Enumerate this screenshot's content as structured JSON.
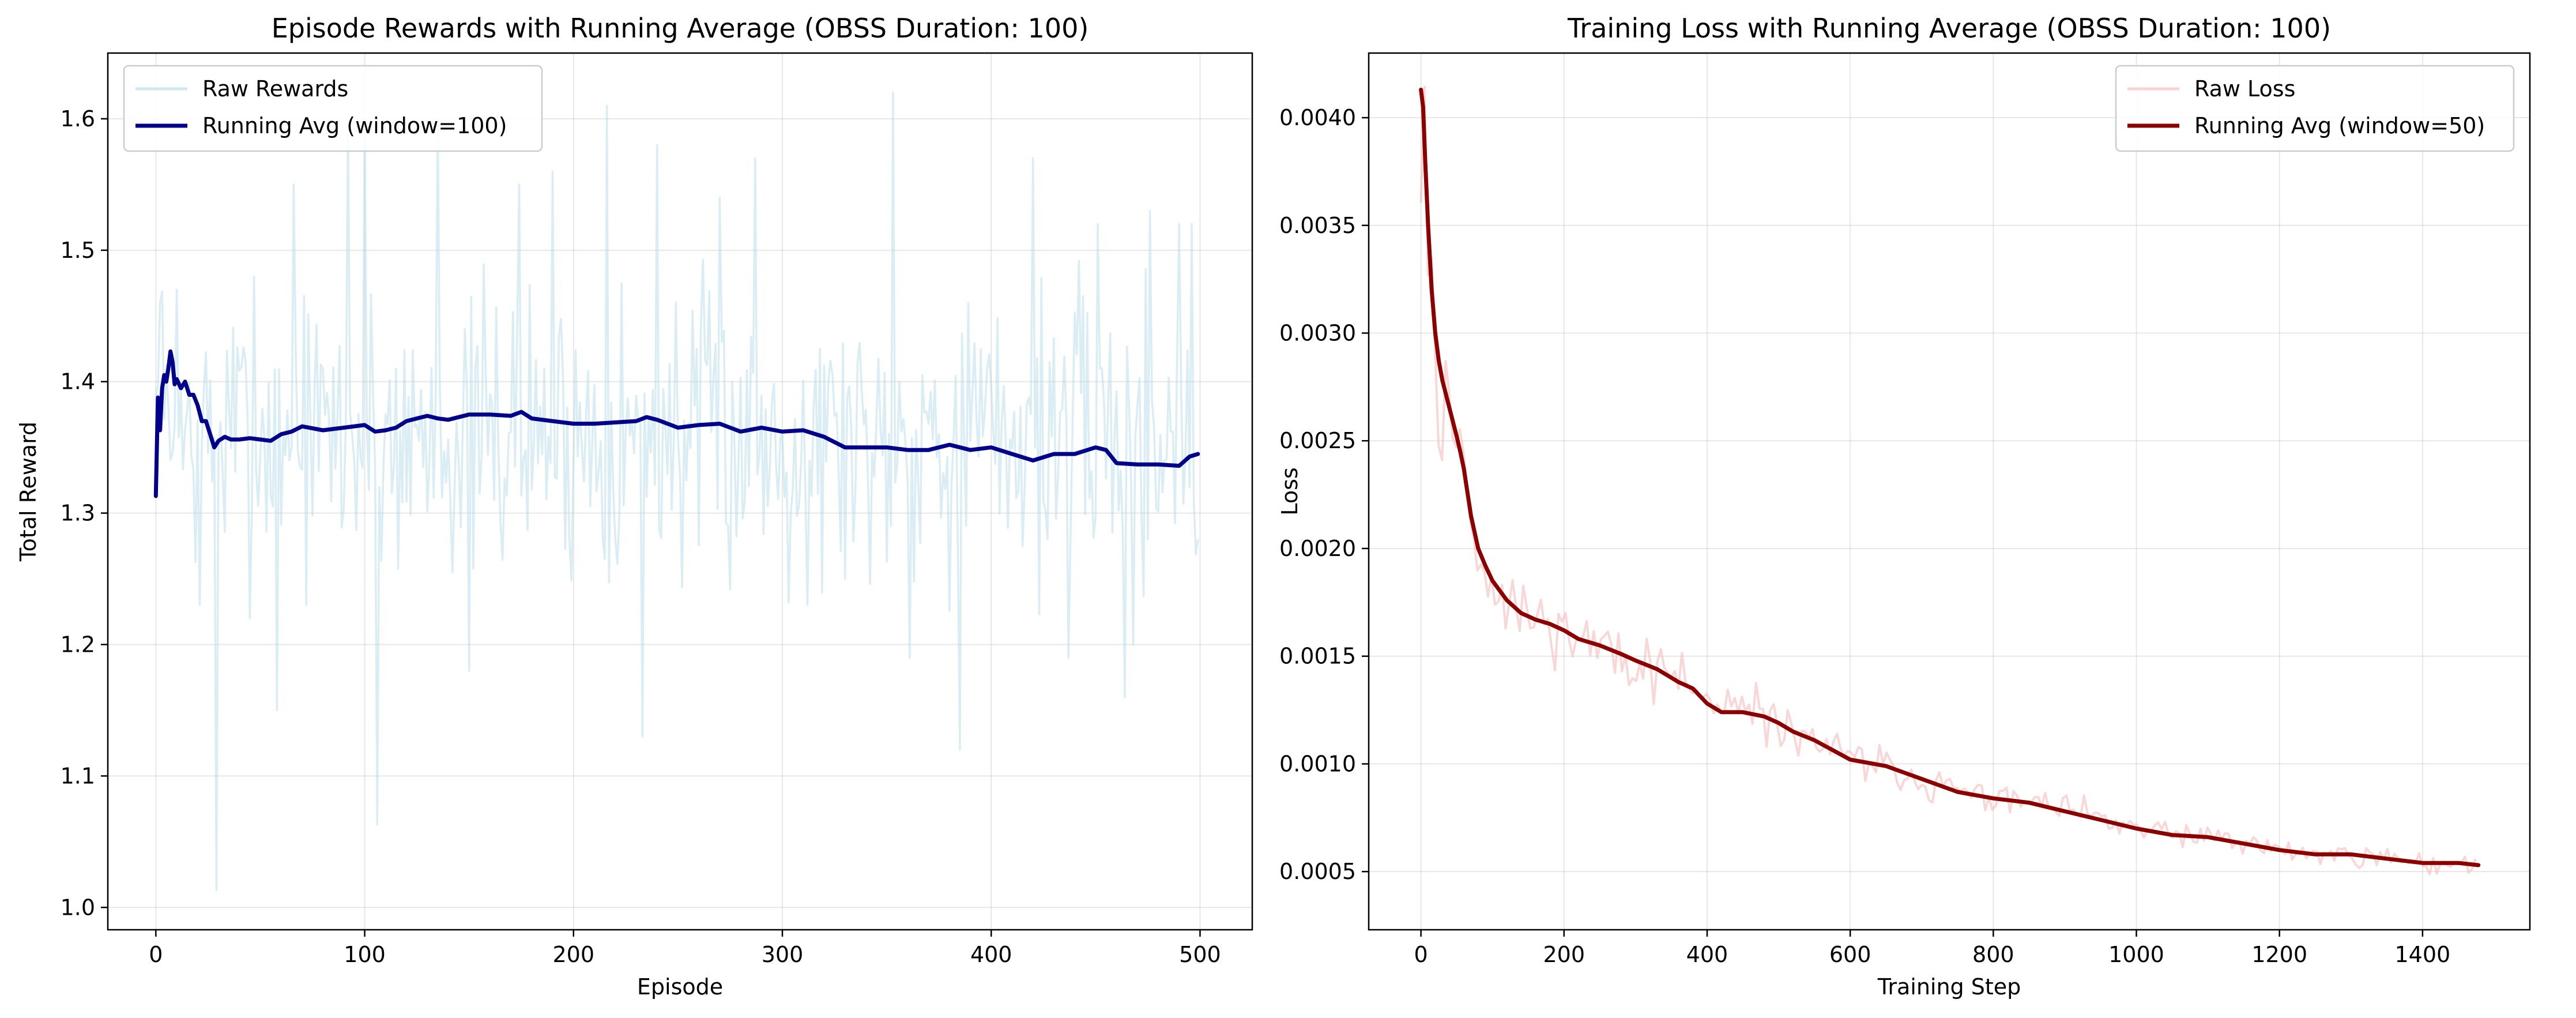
{
  "chart_data": [
    {
      "type": "line",
      "title": "Episode Rewards with Running Average (OBSS Duration: 100)",
      "xlabel": "Episode",
      "ylabel": "Total Reward",
      "xlim": [
        -23,
        525
      ],
      "ylim": [
        0.983,
        1.65
      ],
      "xticks": [
        0,
        100,
        200,
        300,
        400,
        500
      ],
      "yticks": [
        1.0,
        1.1,
        1.2,
        1.3,
        1.4,
        1.5,
        1.6
      ],
      "xtick_labels": [
        "0",
        "100",
        "200",
        "300",
        "400",
        "500"
      ],
      "ytick_labels": [
        "1.0",
        "1.1",
        "1.2",
        "1.3",
        "1.4",
        "1.5",
        "1.6"
      ],
      "grid": true,
      "legend_position": "upper left",
      "raw_series": {
        "name": "Raw Rewards",
        "color": "#add8e6",
        "n": 500,
        "x_start": 0,
        "x_step": 1,
        "mean": 1.36,
        "spread": 0.095,
        "min": 1.013,
        "max": 1.62,
        "seed": 7,
        "extremes": [
          [
            2,
            1.46
          ],
          [
            10,
            1.47
          ],
          [
            21,
            1.23
          ],
          [
            29,
            1.013
          ],
          [
            47,
            1.48
          ],
          [
            58,
            1.15
          ],
          [
            66,
            1.55
          ],
          [
            92,
            1.6
          ],
          [
            100,
            1.6
          ],
          [
            106,
            1.063
          ],
          [
            135,
            1.6
          ],
          [
            150,
            1.18
          ],
          [
            174,
            1.55
          ],
          [
            190,
            1.56
          ],
          [
            216,
            1.61
          ],
          [
            233,
            1.13
          ],
          [
            240,
            1.58
          ],
          [
            270,
            1.54
          ],
          [
            287,
            1.57
          ],
          [
            312,
            1.23
          ],
          [
            330,
            1.25
          ],
          [
            353,
            1.62
          ],
          [
            361,
            1.19
          ],
          [
            385,
            1.12
          ],
          [
            420,
            1.57
          ],
          [
            437,
            1.19
          ],
          [
            451,
            1.52
          ],
          [
            464,
            1.16
          ],
          [
            468,
            1.2
          ],
          [
            476,
            1.53
          ],
          [
            490,
            1.52
          ],
          [
            496,
            1.52
          ],
          [
            499,
            1.28
          ]
        ]
      },
      "series": [
        {
          "name": "Running Avg (window=100)",
          "color": "#00008b",
          "x": [
            0,
            1,
            2,
            3,
            4,
            5,
            6,
            7,
            8,
            9,
            10,
            12,
            14,
            16,
            18,
            20,
            22,
            24,
            26,
            28,
            30,
            33,
            36,
            40,
            45,
            50,
            55,
            60,
            65,
            70,
            80,
            90,
            100,
            105,
            110,
            115,
            120,
            125,
            130,
            135,
            140,
            150,
            160,
            170,
            175,
            180,
            190,
            200,
            210,
            220,
            230,
            235,
            240,
            250,
            260,
            270,
            280,
            290,
            300,
            310,
            320,
            330,
            340,
            350,
            360,
            370,
            380,
            390,
            400,
            410,
            420,
            430,
            440,
            450,
            455,
            460,
            470,
            480,
            490,
            495,
            499
          ],
          "y": [
            1.313,
            1.388,
            1.363,
            1.395,
            1.405,
            1.4,
            1.41,
            1.423,
            1.415,
            1.398,
            1.402,
            1.395,
            1.4,
            1.39,
            1.39,
            1.382,
            1.37,
            1.37,
            1.36,
            1.35,
            1.355,
            1.358,
            1.356,
            1.356,
            1.357,
            1.356,
            1.355,
            1.36,
            1.362,
            1.366,
            1.363,
            1.365,
            1.367,
            1.362,
            1.363,
            1.365,
            1.37,
            1.372,
            1.374,
            1.372,
            1.371,
            1.375,
            1.375,
            1.374,
            1.377,
            1.372,
            1.37,
            1.368,
            1.368,
            1.369,
            1.37,
            1.373,
            1.371,
            1.365,
            1.367,
            1.368,
            1.362,
            1.365,
            1.362,
            1.363,
            1.358,
            1.35,
            1.35,
            1.35,
            1.348,
            1.348,
            1.352,
            1.348,
            1.35,
            1.345,
            1.34,
            1.345,
            1.345,
            1.35,
            1.348,
            1.338,
            1.337,
            1.337,
            1.336,
            1.343,
            1.345
          ]
        }
      ]
    },
    {
      "type": "line",
      "title": "Training Loss with Running Average (OBSS Duration: 100)",
      "xlabel": "Training Step",
      "ylabel": "Loss",
      "xlim": [
        -73,
        1550
      ],
      "ylim": [
        0.00023,
        0.0043
      ],
      "xticks": [
        0,
        200,
        400,
        600,
        800,
        1000,
        1200,
        1400
      ],
      "yticks": [
        0.0005,
        0.001,
        0.0015,
        0.002,
        0.0025,
        0.003,
        0.0035,
        0.004
      ],
      "xtick_labels": [
        "0",
        "200",
        "400",
        "600",
        "800",
        "1000",
        "1200",
        "1400"
      ],
      "ytick_labels": [
        "0.0005",
        "0.0010",
        "0.0015",
        "0.0020",
        "0.0025",
        "0.0030",
        "0.0035",
        "0.0040"
      ],
      "grid": true,
      "legend_position": "upper right",
      "raw_series": {
        "name": "Raw Loss",
        "color": "#f4b6b6",
        "n": 300,
        "x_start": 0,
        "x_step": 4.93,
        "spread_ratio": 0.08,
        "seed": 11
      },
      "series": [
        {
          "name": "Running Avg (window=50)",
          "color": "#8b0000",
          "x": [
            0,
            3,
            6,
            10,
            15,
            20,
            25,
            30,
            40,
            50,
            55,
            60,
            70,
            80,
            90,
            100,
            120,
            140,
            160,
            180,
            200,
            220,
            250,
            280,
            300,
            330,
            360,
            380,
            400,
            420,
            450,
            480,
            500,
            520,
            550,
            600,
            650,
            700,
            750,
            800,
            850,
            900,
            950,
            1000,
            1050,
            1100,
            1150,
            1200,
            1250,
            1300,
            1350,
            1400,
            1450,
            1478
          ],
          "y": [
            0.00413,
            0.00405,
            0.0038,
            0.0035,
            0.0032,
            0.003,
            0.00287,
            0.00278,
            0.00265,
            0.00252,
            0.00245,
            0.00237,
            0.00215,
            0.002,
            0.00192,
            0.00185,
            0.00176,
            0.0017,
            0.00167,
            0.00165,
            0.00162,
            0.00158,
            0.00155,
            0.00151,
            0.00148,
            0.00144,
            0.00138,
            0.00135,
            0.00128,
            0.00124,
            0.00124,
            0.00122,
            0.00119,
            0.00115,
            0.00111,
            0.00102,
            0.00099,
            0.00093,
            0.00087,
            0.00084,
            0.00082,
            0.00078,
            0.00074,
            0.0007,
            0.00067,
            0.00066,
            0.00063,
            0.0006,
            0.00058,
            0.00058,
            0.00056,
            0.00054,
            0.00054,
            0.00053
          ]
        }
      ]
    }
  ]
}
